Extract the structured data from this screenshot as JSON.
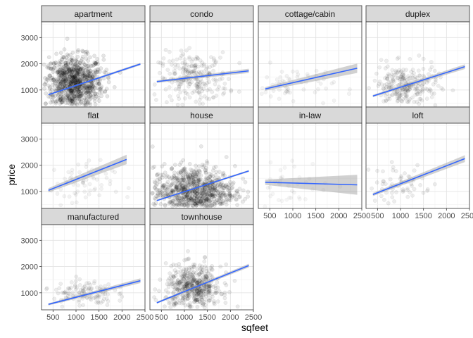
{
  "chart_data": {
    "type": "scatter",
    "facet_by": "housing type",
    "xlabel": "sqfeet",
    "ylabel": "price",
    "xlim": [
      250,
      2500
    ],
    "ylim": [
      350,
      3600
    ],
    "x_ticks": [
      500,
      1000,
      1500,
      2000,
      2500
    ],
    "y_ticks": [
      1000,
      2000,
      3000
    ],
    "ncol": 4,
    "grid": true,
    "panel_background": "#ffffff",
    "strip_background": "#d9d9d9",
    "point_color": "#000000",
    "fit_line_color": "#3366ff",
    "ci_color": "#999999",
    "panels": [
      {
        "label": "apartment",
        "fit": {
          "x": [
            400,
            2400
          ],
          "y": [
            820,
            1990
          ]
        },
        "ci": [
          {
            "x": 400,
            "half": 35
          },
          {
            "x": 2400,
            "half": 45
          }
        ],
        "cloud": {
          "xc": 950,
          "yc": 1250,
          "sx": 320,
          "sy": 520,
          "n": 900,
          "alpha": 0.1
        }
      },
      {
        "label": "condo",
        "fit": {
          "x": [
            400,
            2400
          ],
          "y": [
            1320,
            1730
          ]
        },
        "ci": [
          {
            "x": 400,
            "half": 50
          },
          {
            "x": 2400,
            "half": 80
          }
        ],
        "cloud": {
          "xc": 1200,
          "yc": 1450,
          "sx": 380,
          "sy": 480,
          "n": 250,
          "alpha": 0.07
        }
      },
      {
        "label": "cottage/cabin",
        "fit": {
          "x": [
            400,
            2400
          ],
          "y": [
            1040,
            1830
          ]
        },
        "ci": [
          {
            "x": 400,
            "half": 70
          },
          {
            "x": 2400,
            "half": 180
          }
        ],
        "cloud": {
          "xc": 1000,
          "yc": 1150,
          "sx": 450,
          "sy": 400,
          "n": 60,
          "alpha": 0.05
        }
      },
      {
        "label": "duplex",
        "fit": {
          "x": [
            400,
            2400
          ],
          "y": [
            770,
            1890
          ]
        },
        "ci": [
          {
            "x": 400,
            "half": 45
          },
          {
            "x": 2400,
            "half": 90
          }
        ],
        "cloud": {
          "xc": 1100,
          "yc": 1150,
          "sx": 350,
          "sy": 400,
          "n": 260,
          "alpha": 0.07
        }
      },
      {
        "label": "flat",
        "fit": {
          "x": [
            400,
            2100
          ],
          "y": [
            1040,
            2220
          ]
        },
        "ci": [
          {
            "x": 400,
            "half": 80
          },
          {
            "x": 2100,
            "half": 180
          }
        ],
        "cloud": {
          "xc": 1000,
          "yc": 1250,
          "sx": 400,
          "sy": 450,
          "n": 70,
          "alpha": 0.05
        }
      },
      {
        "label": "house",
        "fit": {
          "x": [
            400,
            2400
          ],
          "y": [
            650,
            1780
          ]
        },
        "ci": [
          {
            "x": 400,
            "half": 25
          },
          {
            "x": 2400,
            "half": 35
          }
        ],
        "cloud": {
          "xc": 1200,
          "yc": 1000,
          "sx": 450,
          "sy": 480,
          "n": 900,
          "alpha": 0.09
        }
      },
      {
        "label": "in-law",
        "fit": {
          "x": [
            400,
            2400
          ],
          "y": [
            1350,
            1250
          ]
        },
        "ci": [
          {
            "x": 400,
            "half": 100
          },
          {
            "x": 2400,
            "half": 380
          }
        ],
        "cloud": {
          "xc": 1000,
          "yc": 1300,
          "sx": 400,
          "sy": 450,
          "n": 40,
          "alpha": 0.04
        }
      },
      {
        "label": "loft",
        "fit": {
          "x": [
            400,
            2400
          ],
          "y": [
            880,
            2250
          ]
        },
        "ci": [
          {
            "x": 400,
            "half": 60
          },
          {
            "x": 2400,
            "half": 130
          }
        ],
        "cloud": {
          "xc": 1000,
          "yc": 1300,
          "sx": 350,
          "sy": 380,
          "n": 60,
          "alpha": 0.07
        }
      },
      {
        "label": "manufactured",
        "fit": {
          "x": [
            400,
            2400
          ],
          "y": [
            560,
            1460
          ]
        },
        "ci": [
          {
            "x": 400,
            "half": 40
          },
          {
            "x": 2400,
            "half": 90
          }
        ],
        "cloud": {
          "xc": 1150,
          "yc": 1000,
          "sx": 330,
          "sy": 250,
          "n": 120,
          "alpha": 0.07
        }
      },
      {
        "label": "townhouse",
        "fit": {
          "x": [
            400,
            2400
          ],
          "y": [
            620,
            2040
          ]
        },
        "ci": [
          {
            "x": 400,
            "half": 35
          },
          {
            "x": 2400,
            "half": 70
          }
        ],
        "cloud": {
          "xc": 1200,
          "yc": 1200,
          "sx": 300,
          "sy": 420,
          "n": 500,
          "alpha": 0.08
        }
      }
    ]
  }
}
